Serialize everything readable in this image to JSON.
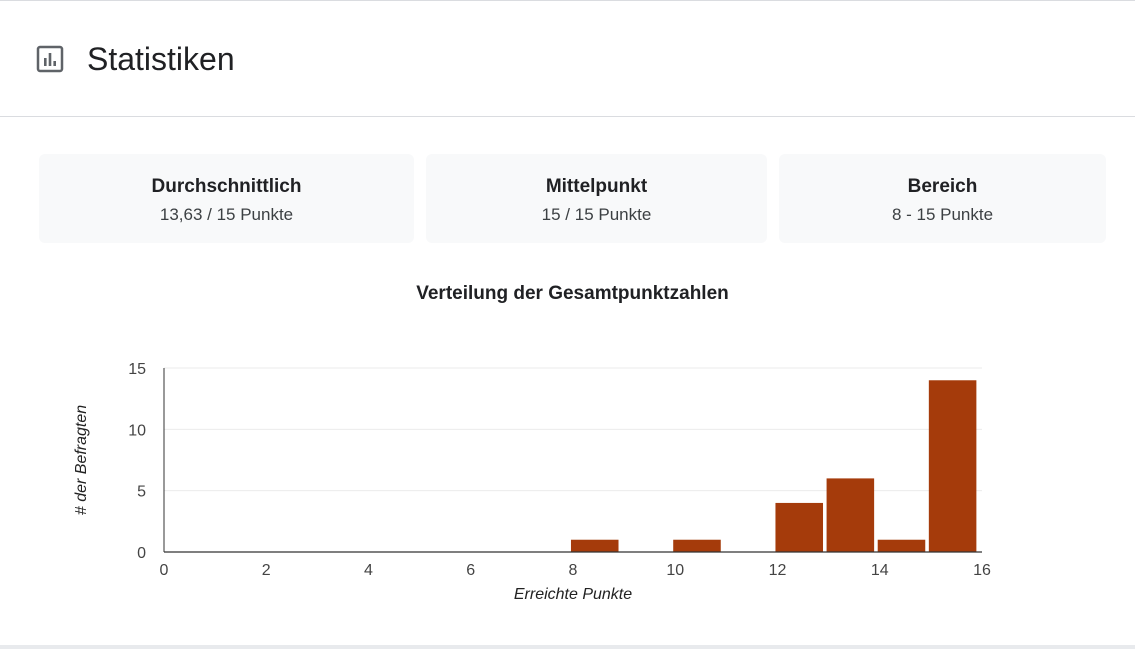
{
  "header": {
    "title": "Statistiken",
    "icon": "bar-chart-icon"
  },
  "stats": [
    {
      "label": "Durchschnittlich",
      "value": "13,63 / 15 Punkte"
    },
    {
      "label": "Mittelpunkt",
      "value": "15 / 15 Punkte"
    },
    {
      "label": "Bereich",
      "value": "8 - 15 Punkte"
    }
  ],
  "chart_data": {
    "type": "bar",
    "title": "Verteilung der Gesamtpunktzahlen",
    "xlabel": "Erreichte Punkte",
    "ylabel": "# der Befragten",
    "xlim": [
      0,
      16
    ],
    "ylim": [
      0,
      15
    ],
    "xticks": [
      0,
      2,
      4,
      6,
      8,
      10,
      12,
      14,
      16
    ],
    "yticks": [
      0,
      5,
      10,
      15
    ],
    "grid": true,
    "bar_color": "#a53b0b",
    "x": [
      8,
      10,
      12,
      13,
      14,
      15
    ],
    "values": [
      1,
      1,
      4,
      6,
      1,
      14
    ]
  }
}
